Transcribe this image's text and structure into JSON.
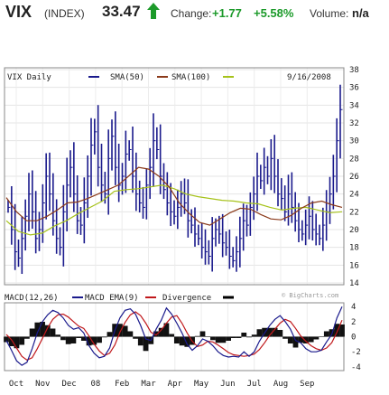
{
  "header": {
    "symbol": "VIX",
    "exchange": "(INDEX)",
    "price": "33.47",
    "arrow_icon": "up-arrow-icon",
    "change_label": "Change:",
    "change": "+1.77",
    "change_pct": "+5.58%",
    "volume_label": "Volume:",
    "volume": "n/a",
    "up_color": "#1c9a2a"
  },
  "chart_data": [
    {
      "type": "ohlc",
      "title": "VIX Daily",
      "date": "9/16/2008",
      "legend": [
        {
          "label": "SMA(50)",
          "color": "#8b3a1a"
        },
        {
          "label": "SMA(100)",
          "color": "#a6c21a"
        }
      ],
      "bar_color": "#1a1a8c",
      "ylim": [
        14,
        38
      ],
      "yticks": [
        "38",
        "36",
        "34",
        "32",
        "30",
        "28",
        "26",
        "24",
        "22",
        "20",
        "18",
        "16",
        "14"
      ],
      "xticks": [
        "Oct",
        "Nov",
        "Dec",
        "08",
        "Feb",
        "Mar",
        "Apr",
        "May",
        "Jun",
        "Jul",
        "Aug",
        "Sep"
      ],
      "close": [
        22.5,
        20.0,
        17.5,
        16.8,
        19.0,
        21.5,
        24.0,
        22.0,
        19.0,
        20.0,
        23.0,
        26.0,
        24.0,
        21.0,
        19.0,
        18.0,
        22.0,
        25.0,
        27.0,
        24.0,
        21.0,
        20.5,
        23.0,
        26.0,
        29.5,
        31.0,
        27.0,
        25.0,
        24.0,
        28.0,
        30.5,
        27.0,
        25.0,
        26.0,
        28.5,
        29.0,
        26.0,
        24.0,
        23.0,
        22.5,
        25.0,
        27.0,
        30.0,
        29.0,
        26.0,
        24.5,
        23.0,
        22.0,
        21.5,
        22.5,
        24.0,
        23.0,
        21.0,
        20.5,
        19.5,
        19.0,
        18.0,
        17.5,
        17.0,
        19.0,
        20.0,
        19.5,
        18.5,
        18.0,
        17.0,
        16.5,
        17.5,
        19.0,
        21.0,
        20.5,
        22.5,
        24.0,
        26.0,
        25.5,
        27.0,
        26.0,
        28.0,
        26.0,
        24.0,
        23.5,
        22.0,
        24.0,
        22.5,
        21.0,
        20.0,
        19.5,
        20.5,
        21.5,
        20.0,
        19.5,
        19.0,
        20.5,
        22.0,
        24.0,
        26.0,
        30.0,
        33.5
      ],
      "sma50": [
        23.6,
        22.0,
        21.0,
        21.0,
        21.5,
        22.2,
        23.0,
        23.1,
        23.5,
        24.0,
        24.5,
        25.0,
        26.0,
        27.0,
        26.8,
        26.0,
        24.8,
        23.0,
        21.8,
        20.8,
        20.5,
        21.2,
        21.9,
        22.4,
        22.3,
        21.7,
        21.2,
        21.1,
        21.6,
        22.4,
        23.0,
        23.2,
        22.8,
        22.5
      ],
      "sma100": [
        21.0,
        19.8,
        19.4,
        19.6,
        20.4,
        21.0,
        21.8,
        22.5,
        23.2,
        24.3,
        24.5,
        24.6,
        24.8,
        25.0,
        24.6,
        24.0,
        23.7,
        23.5,
        23.3,
        23.2,
        23.0,
        22.9,
        22.5,
        22.2,
        22.4,
        22.5,
        22.2,
        21.9,
        22.0
      ]
    },
    {
      "type": "line",
      "title": "",
      "date": "",
      "watermark": "© BigCharts.com",
      "legend": [
        {
          "label": "MACD(12,26)",
          "color": "#1a1a8c"
        },
        {
          "label": "MACD EMA(9)",
          "color": "#c0181b"
        },
        {
          "label": "Divergence",
          "color": "#000000"
        }
      ],
      "ylim": [
        -4.5,
        4.5
      ],
      "yticks": [
        "4",
        "2",
        "0",
        "-2",
        "-4"
      ],
      "macd": [
        -0.5,
        -1.8,
        -3.2,
        -3.8,
        -3.4,
        -1.6,
        0.5,
        2.0,
        2.9,
        3.5,
        3.2,
        2.5,
        1.5,
        1.0,
        1.2,
        0.5,
        -1.2,
        -2.2,
        -2.8,
        -2.6,
        -1.5,
        0.8,
        2.5,
        3.5,
        3.7,
        3.0,
        1.5,
        -0.3,
        -0.5,
        1.0,
        2.2,
        3.8,
        3.0,
        1.8,
        0.5,
        -1.0,
        -1.8,
        -1.2,
        -0.3,
        -0.6,
        -1.2,
        -2.0,
        -2.5,
        -2.7,
        -2.6,
        -2.7,
        -2.0,
        -2.6,
        -2.0,
        -0.6,
        0.5,
        1.5,
        2.3,
        2.8,
        2.0,
        1.0,
        -0.5,
        -0.8,
        -1.6,
        -2.0,
        -2.0,
        -1.8,
        -0.7,
        0.3,
        2.5,
        4.0
      ],
      "signal": [
        0.3,
        -0.4,
        -1.5,
        -2.6,
        -3.1,
        -2.8,
        -1.6,
        -0.2,
        1.2,
        2.3,
        2.9,
        3.0,
        2.6,
        2.0,
        1.4,
        1.1,
        0.1,
        -1.0,
        -1.9,
        -2.5,
        -2.2,
        -1.1,
        0.6,
        1.9,
        2.9,
        3.3,
        2.8,
        1.8,
        0.6,
        0.2,
        0.9,
        1.8,
        2.6,
        2.8,
        1.8,
        0.5,
        -0.6,
        -1.3,
        -1.1,
        -0.6,
        -0.7,
        -1.1,
        -1.6,
        -2.1,
        -2.4,
        -2.5,
        -2.6,
        -2.5,
        -2.3,
        -1.7,
        -0.8,
        0.2,
        1.0,
        1.8,
        2.3,
        2.0,
        1.1,
        0.1,
        -0.6,
        -1.2,
        -1.6,
        -1.8,
        -1.5,
        -0.8,
        0.6,
        2.2
      ]
    }
  ]
}
